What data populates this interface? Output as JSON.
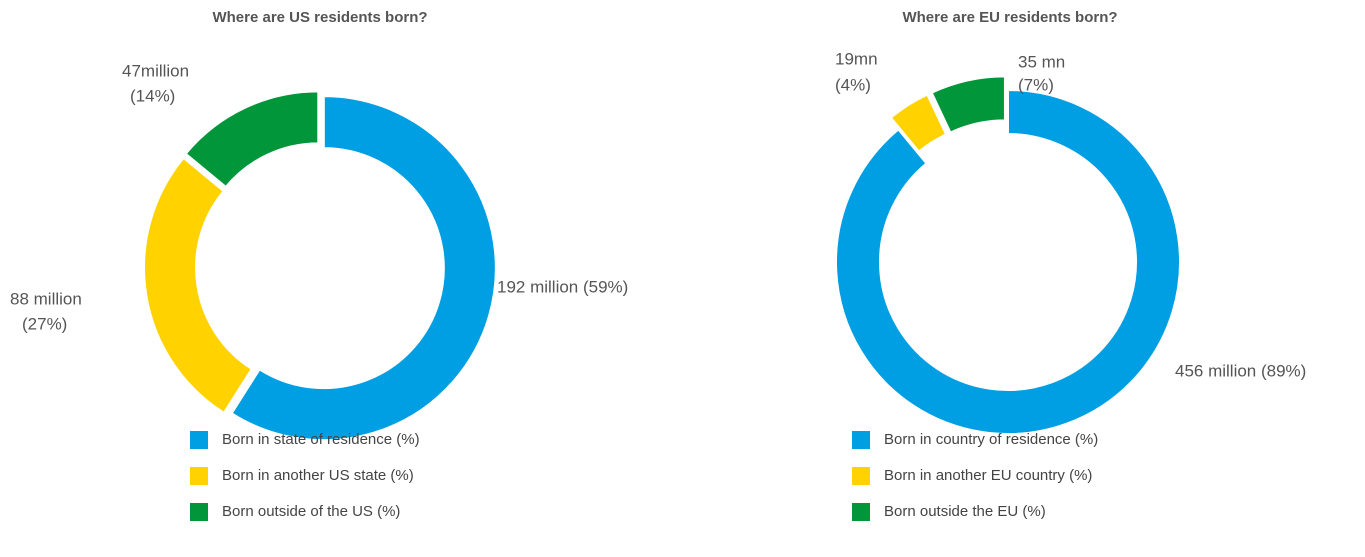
{
  "chart_data": [
    {
      "type": "pie",
      "title": "Where are US residents born?",
      "categories": [
        "Born in state of residence (%)",
        "Born in another US state (%)",
        "Born outside of the US (%)"
      ],
      "values": [
        59,
        27,
        14
      ],
      "value_labels": [
        [
          "192 million (59%)"
        ],
        [
          "88 million",
          "(27%)"
        ],
        [
          "47million",
          "(14%)"
        ]
      ],
      "colors": [
        "#009fe3",
        "#ffd200",
        "#009639"
      ]
    },
    {
      "type": "pie",
      "title": "Where are EU residents born?",
      "categories": [
        "Born in country of residence (%)",
        "Born in another EU country (%)",
        "Born outside the EU (%)"
      ],
      "values": [
        89,
        4,
        7
      ],
      "value_labels": [
        [
          "456 million (89%)"
        ],
        [
          "19mn",
          "(4%)"
        ],
        [
          "35 mn",
          "(7%)"
        ]
      ],
      "colors": [
        "#009fe3",
        "#ffd200",
        "#009639"
      ]
    }
  ]
}
